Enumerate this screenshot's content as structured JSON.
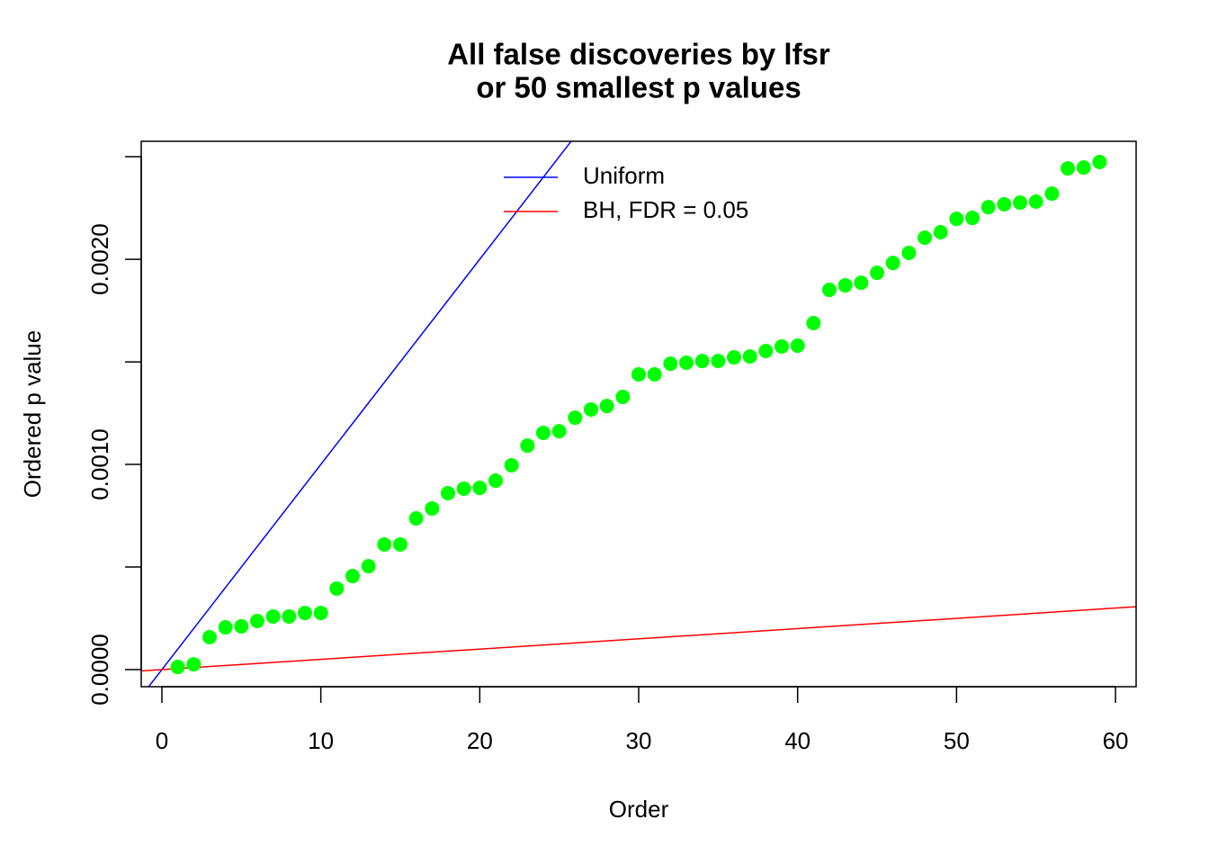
{
  "chart_data": {
    "type": "scatter",
    "title": [
      "All false discoveries by lfsr",
      "or 50 smallest p values"
    ],
    "x_label": "Order",
    "y_label": "Ordered p value",
    "color": "#00ff00",
    "x": [
      1,
      2,
      3,
      4,
      5,
      6,
      7,
      8,
      9,
      10,
      11,
      12,
      13,
      14,
      15,
      16,
      17,
      18,
      19,
      20,
      21,
      22,
      23,
      24,
      25,
      26,
      27,
      28,
      29,
      30,
      31,
      32,
      33,
      34,
      35,
      36,
      37,
      38,
      39,
      40,
      41,
      42,
      43,
      44,
      45,
      46,
      47,
      48,
      49,
      50,
      51,
      52,
      53,
      54,
      55,
      56,
      57,
      58,
      59
    ],
    "values": [
      1.3e-05,
      2.6e-05,
      0.000158,
      0.000206,
      0.000211,
      0.000237,
      0.000259,
      0.000259,
      0.000276,
      0.000276,
      0.000395,
      0.000456,
      0.000504,
      0.00061,
      0.00061,
      0.000737,
      0.000785,
      0.00086,
      0.000882,
      0.000886,
      0.000921,
      0.000996,
      0.001092,
      0.001154,
      0.001162,
      0.001228,
      0.001268,
      0.001285,
      0.001329,
      0.001439,
      0.001439,
      0.001491,
      0.001496,
      0.001504,
      0.001504,
      0.001522,
      0.001526,
      0.001553,
      0.001575,
      0.001579,
      0.001689,
      0.001851,
      0.001873,
      0.001886,
      0.001934,
      0.001982,
      0.002031,
      0.002105,
      0.002132,
      0.002197,
      0.002202,
      0.002254,
      0.002268,
      0.002276,
      0.002281,
      0.00232,
      0.002443,
      0.002447,
      0.002474
    ],
    "lines": [
      {
        "name": "Uniform",
        "color": "#0000ff",
        "intercept": 0,
        "slope": 0.0001
      },
      {
        "name": "BH, FDR = 0.05",
        "color": "#ff0000",
        "intercept": 0,
        "slope": 5e-06
      }
    ],
    "xlim": [
      -1.3,
      61.3
    ],
    "xticks": [
      0,
      10,
      20,
      30,
      40,
      50,
      60
    ],
    "ylim": [
      -8.33e-05,
      0.002575
    ],
    "yticks": [
      {
        "value": 0,
        "label": "0.0000"
      },
      {
        "value": 0.0005,
        "label": null
      },
      {
        "value": 0.001,
        "label": "0.0010"
      },
      {
        "value": 0.0015,
        "label": null
      },
      {
        "value": 0.002,
        "label": "0.0020"
      },
      {
        "value": 0.0025,
        "label": null
      }
    ],
    "legend": "top"
  }
}
